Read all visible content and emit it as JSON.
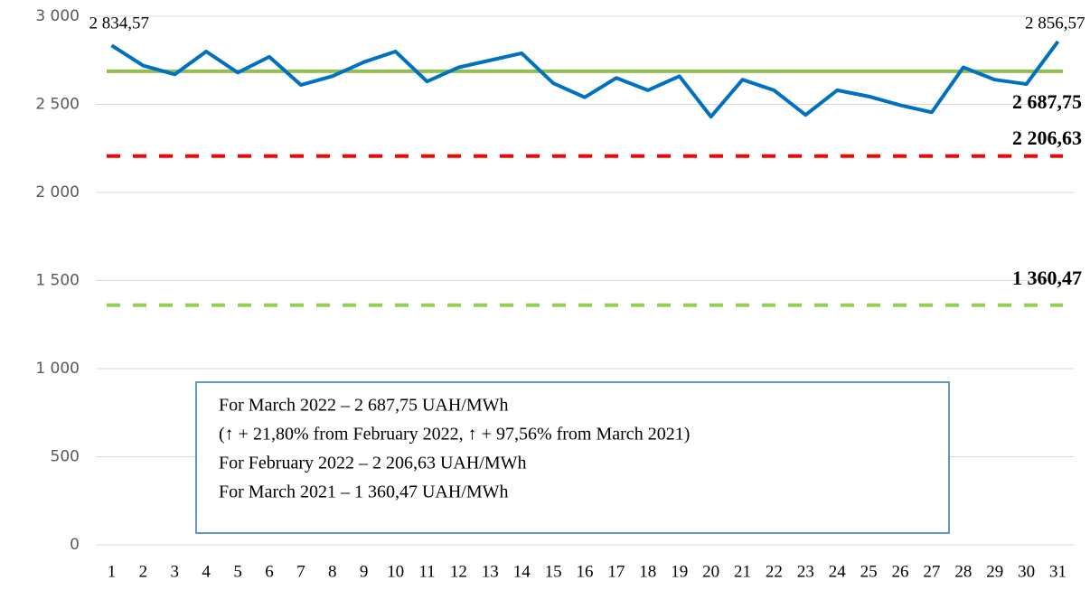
{
  "chart_data": {
    "type": "line",
    "categories": [
      "1",
      "2",
      "3",
      "4",
      "5",
      "6",
      "7",
      "8",
      "9",
      "10",
      "11",
      "12",
      "13",
      "14",
      "15",
      "16",
      "17",
      "18",
      "19",
      "20",
      "21",
      "22",
      "23",
      "24",
      "25",
      "26",
      "27",
      "28",
      "29",
      "30",
      "31"
    ],
    "series": [
      {
        "color": "#0070c0",
        "values": [
          2834.57,
          2720,
          2670,
          2800,
          2680,
          2770,
          2610,
          2660,
          2740,
          2800,
          2630,
          2710,
          2750,
          2790,
          2620,
          2540,
          2650,
          2580,
          2660,
          2430,
          2640,
          2580,
          2440,
          2580,
          2545,
          2495,
          2455,
          2710,
          2640,
          2615,
          2856.57
        ],
        "value_labels": [
          "2 834,57",
          null,
          null,
          null,
          null,
          null,
          null,
          null,
          null,
          null,
          null,
          null,
          null,
          null,
          null,
          null,
          null,
          null,
          null,
          null,
          null,
          null,
          null,
          null,
          null,
          null,
          null,
          null,
          null,
          null,
          "2 856,57"
        ]
      }
    ],
    "reference_lines": [
      {
        "value": 2687.75,
        "label": "2 687,75",
        "color": "#92c050",
        "style": "solid"
      },
      {
        "value": 2206.63,
        "label": "2 206,63",
        "color": "#ff0000",
        "style": "dashed"
      },
      {
        "value": 1360.47,
        "label": "1 360,47",
        "color": "#92d050",
        "style": "dashed"
      }
    ],
    "ylim": [
      0,
      3000
    ],
    "yticks": [
      0,
      500,
      {
        "value": 1000,
        "label": "1 000"
      },
      {
        "value": 1500,
        "label": "1 500"
      },
      {
        "value": 2000,
        "label": "2 000"
      },
      {
        "value": 2500,
        "label": "2 500"
      },
      {
        "value": 3000,
        "label": "3 000"
      }
    ],
    "grid": true,
    "annotation": [
      "For March 2022 – 2 687,75 UAH/MWh",
      "(↑ + 21,80% from February 2022, ↑ + 97,56% from  March 2021)",
      "For February 2022 – 2 206,63 UAH/MWh",
      "For March 2021 – 1 360,47 UAH/MWh"
    ]
  }
}
